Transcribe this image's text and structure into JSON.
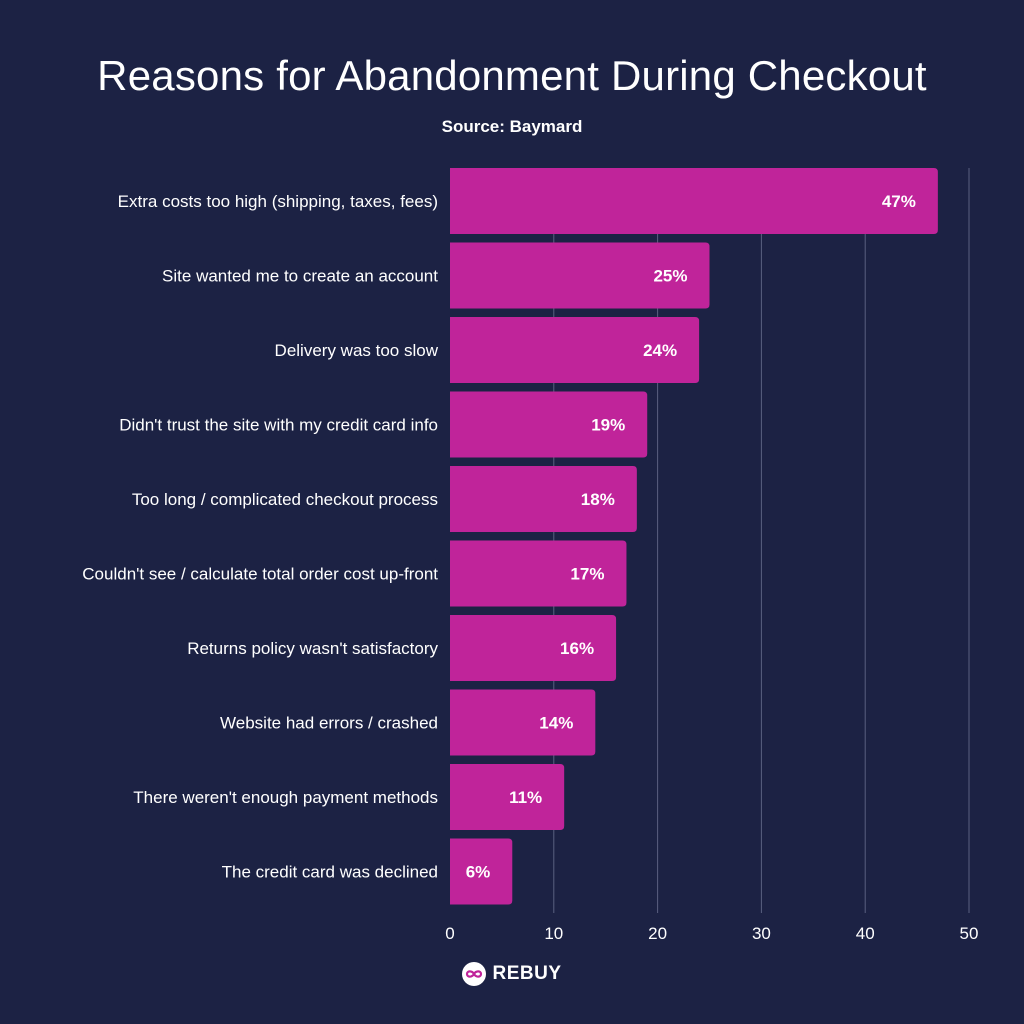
{
  "header": {
    "title": "Reasons for Abandonment During Checkout",
    "subtitle": "Source: Baymard"
  },
  "footer": {
    "brand": "REBUY",
    "logo_icon": "infinity-logo-icon"
  },
  "colors": {
    "background": "#1c2244",
    "bar": "#c0249a",
    "grid": "#5a6080",
    "text": "#ffffff"
  },
  "chart_data": {
    "type": "bar",
    "orientation": "horizontal",
    "categories": [
      "Extra costs too high (shipping, taxes, fees)",
      "Site wanted me to create an account",
      "Delivery was too slow",
      "Didn't trust the site with my credit card info",
      "Too long / complicated checkout process",
      "Couldn't see / calculate total order cost up-front",
      "Returns policy wasn't satisfactory",
      "Website had errors / crashed",
      "There weren't enough payment methods",
      "The credit card was declined"
    ],
    "values": [
      47,
      25,
      24,
      19,
      18,
      17,
      16,
      14,
      11,
      6
    ],
    "data_labels": [
      "47%",
      "25%",
      "24%",
      "19%",
      "18%",
      "17%",
      "16%",
      "14%",
      "11%",
      "6%"
    ],
    "xlim": [
      0,
      50
    ],
    "xticks": [
      "0",
      "10",
      "20",
      "30",
      "40",
      "50"
    ],
    "xtick_values": [
      0,
      10,
      20,
      30,
      40,
      50
    ],
    "grid": true,
    "title": "Reasons for Abandonment During Checkout",
    "subtitle": "Source: Baymard",
    "xlabel": "",
    "ylabel": ""
  }
}
